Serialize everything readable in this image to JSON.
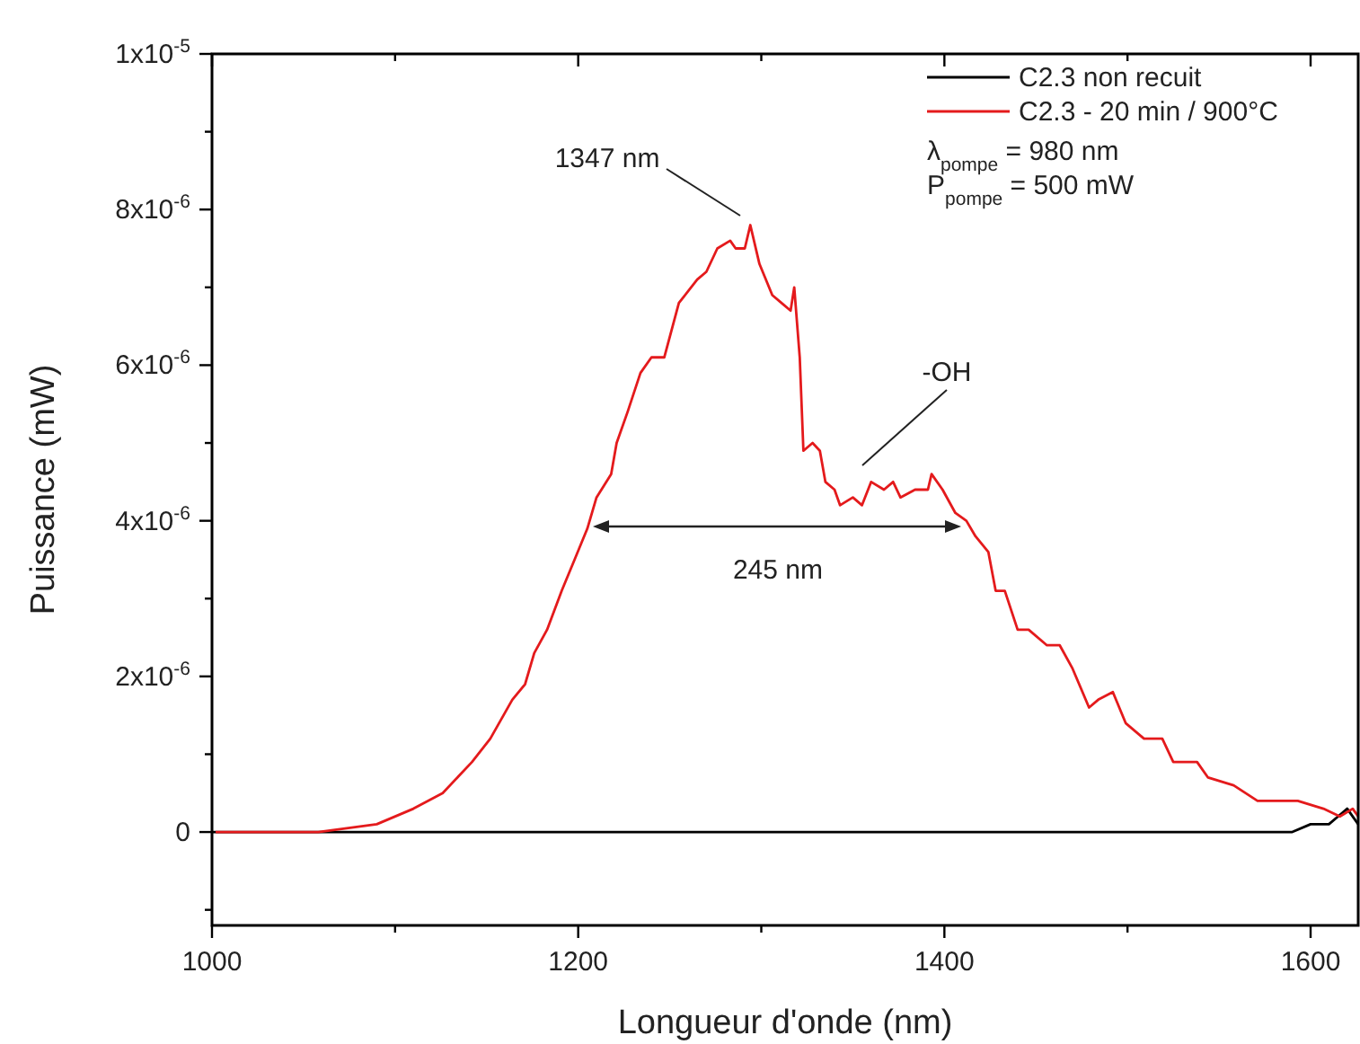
{
  "chart_data": {
    "type": "line",
    "xlabel": "Longueur d'onde (nm)",
    "ylabel": "Puissance (mW)",
    "xlim": [
      1000,
      1626
    ],
    "ylim": [
      -1.2e-06,
      1e-05
    ],
    "xticks": [
      1000,
      {
        "value": 1100,
        "label": null
      },
      1200,
      {
        "value": 1300,
        "label": null
      },
      1400,
      {
        "value": 1500,
        "label": null
      },
      1600
    ],
    "yticks": [
      {
        "value": -1e-06,
        "label": null
      },
      0,
      {
        "value": 1e-06,
        "label": null
      },
      {
        "value": 2e-06,
        "label": "2x10$^{-6}$"
      },
      {
        "value": 3e-06,
        "label": null
      },
      {
        "value": 4e-06,
        "label": "4x10$^{-6}$"
      },
      {
        "value": 5e-06,
        "label": null
      },
      {
        "value": 6e-06,
        "label": "6x10$^{-6}$"
      },
      {
        "value": 7e-06,
        "label": null
      },
      {
        "value": 8e-06,
        "label": "8x10$^{-6}$"
      },
      {
        "value": 9e-06,
        "label": null
      },
      {
        "value": 1e-05,
        "label": "1x10$^{-5}$"
      }
    ],
    "grid": false,
    "legend": "top right",
    "series": [
      {
        "name": "C2.3 non recuit",
        "color": "#000000",
        "x": [
          1000,
          1100,
          1200,
          1300,
          1400,
          1500,
          1580,
          1590,
          1600,
          1605,
          1610,
          1615,
          1620,
          1626
        ],
        "values": [
          0,
          0,
          0,
          0,
          0,
          0,
          0,
          0,
          1e-07,
          1e-07,
          1e-07,
          2e-07,
          3e-07,
          1e-07
        ]
      },
      {
        "name": "C2.3 - 20 min / 900°C",
        "color": "#e41a1c",
        "x": [
          1002,
          1058,
          1090,
          1110,
          1126,
          1142,
          1152,
          1164,
          1171,
          1176,
          1183,
          1191,
          1198,
          1205,
          1210,
          1218,
          1221,
          1227,
          1234,
          1240,
          1247,
          1255,
          1265,
          1270,
          1276,
          1283,
          1286,
          1291,
          1294,
          1299,
          1306,
          1311,
          1316,
          1318,
          1321,
          1323,
          1328,
          1332,
          1335,
          1340,
          1343,
          1350,
          1355,
          1360,
          1367,
          1372,
          1376,
          1384,
          1391,
          1393,
          1399,
          1406,
          1412,
          1417,
          1424,
          1428,
          1433,
          1440,
          1446,
          1456,
          1463,
          1470,
          1479,
          1484,
          1492,
          1499,
          1509,
          1519,
          1525,
          1538,
          1544,
          1558,
          1571,
          1583,
          1593,
          1607,
          1616,
          1623,
          1626
        ],
        "values": [
          0,
          0,
          1e-07,
          3e-07,
          5e-07,
          9e-07,
          1.2e-06,
          1.7e-06,
          1.9e-06,
          2.3e-06,
          2.6e-06,
          3.1e-06,
          3.5e-06,
          3.9e-06,
          4.3e-06,
          4.6e-06,
          5e-06,
          5.4e-06,
          5.9e-06,
          6.1e-06,
          6.1e-06,
          6.8e-06,
          7.1e-06,
          7.2e-06,
          7.5e-06,
          7.6e-06,
          7.5e-06,
          7.5e-06,
          7.8e-06,
          7.3e-06,
          6.9e-06,
          6.8e-06,
          6.7e-06,
          7e-06,
          6.1e-06,
          4.9e-06,
          5e-06,
          4.9e-06,
          4.5e-06,
          4.4e-06,
          4.2e-06,
          4.3e-06,
          4.2e-06,
          4.5e-06,
          4.4e-06,
          4.5e-06,
          4.3e-06,
          4.4e-06,
          4.4e-06,
          4.6e-06,
          4.4e-06,
          4.1e-06,
          4e-06,
          3.8e-06,
          3.6e-06,
          3.1e-06,
          3.1e-06,
          2.6e-06,
          2.6e-06,
          2.4e-06,
          2.4e-06,
          2.1e-06,
          1.6e-06,
          1.7e-06,
          1.8e-06,
          1.4e-06,
          1.2e-06,
          1.2e-06,
          9e-07,
          9e-07,
          7e-07,
          6e-07,
          4e-07,
          4e-07,
          4e-07,
          3e-07,
          2e-07,
          3e-07,
          2e-07
        ]
      }
    ],
    "annotations": [
      "1347 nm",
      "-OH",
      "245 nm",
      "λ$_{pompe}$ = 980 nm",
      "P$_{pompe}$ = 500 mW"
    ]
  }
}
